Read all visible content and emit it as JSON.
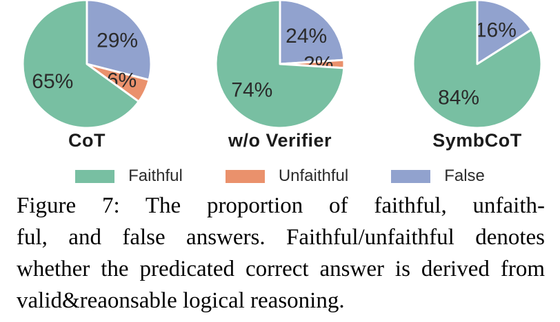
{
  "figure": {
    "charts": [
      {
        "title": "CoT",
        "slices": [
          {
            "name": "False",
            "value": 29,
            "display": "29%",
            "color": "#91A2CE"
          },
          {
            "name": "Unfaithful",
            "value": 6,
            "display": "6%",
            "color": "#EA916C"
          },
          {
            "name": "Faithful",
            "value": 65,
            "display": "65%",
            "color": "#78BFA2"
          }
        ]
      },
      {
        "title": "w/o Verifier",
        "slices": [
          {
            "name": "False",
            "value": 24,
            "display": "24%",
            "color": "#91A2CE"
          },
          {
            "name": "Unfaithful",
            "value": 2,
            "display": "2%",
            "color": "#EA916C"
          },
          {
            "name": "Faithful",
            "value": 74,
            "display": "74%",
            "color": "#78BFA2"
          }
        ]
      },
      {
        "title": "SymbCoT",
        "slices": [
          {
            "name": "False",
            "value": 16,
            "display": "16%",
            "color": "#91A2CE"
          },
          {
            "name": "Faithful",
            "value": 84,
            "display": "84%",
            "color": "#78BFA2"
          }
        ]
      }
    ],
    "legend": [
      {
        "label": "Faithful",
        "color": "#78BFA2"
      },
      {
        "label": "Unfaithful",
        "color": "#EA916C"
      },
      {
        "label": "False",
        "color": "#91A2CE"
      }
    ],
    "caption": {
      "lines": [
        "Figure 7: The proportion of faithful, unfaith-",
        "ful, and false answers. Faithful/unfaithful denotes",
        "whether the predicated correct answer is derived from",
        "valid&reaonsable logical reasoning."
      ]
    }
  },
  "chart_data": [
    {
      "type": "pie",
      "title": "CoT",
      "labels": [
        "Faithful",
        "Unfaithful",
        "False"
      ],
      "values": [
        65,
        6,
        29
      ],
      "colors": [
        "#78BFA2",
        "#EA916C",
        "#91A2CE"
      ],
      "start_angle": "12 o'clock, clockwise, order: False, Unfaithful, Faithful",
      "legend_position": "bottom"
    },
    {
      "type": "pie",
      "title": "w/o Verifier",
      "labels": [
        "Faithful",
        "Unfaithful",
        "False"
      ],
      "values": [
        74,
        2,
        24
      ],
      "colors": [
        "#78BFA2",
        "#EA916C",
        "#91A2CE"
      ],
      "start_angle": "12 o'clock, clockwise, order: False, Unfaithful, Faithful",
      "legend_position": "bottom"
    },
    {
      "type": "pie",
      "title": "SymbCoT",
      "labels": [
        "Faithful",
        "Unfaithful",
        "False"
      ],
      "values": [
        84,
        0,
        16
      ],
      "colors": [
        "#78BFA2",
        "#EA916C",
        "#91A2CE"
      ],
      "start_angle": "12 o'clock, clockwise, order: False, Faithful",
      "legend_position": "bottom"
    }
  ]
}
